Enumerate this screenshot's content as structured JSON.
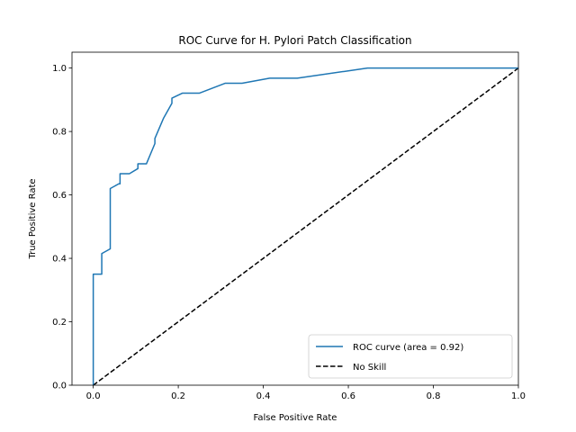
{
  "chart_data": {
    "type": "line",
    "title": "ROC Curve for H. Pylori Patch Classification",
    "xlabel": "False Positive Rate",
    "ylabel": "True Positive Rate",
    "xlim": [
      -0.05,
      1.0
    ],
    "ylim": [
      0.0,
      1.05
    ],
    "xticks": [
      0.0,
      0.2,
      0.4,
      0.6,
      0.8,
      1.0
    ],
    "xtick_labels": [
      "0.0",
      "0.2",
      "0.4",
      "0.6",
      "0.8",
      "1.0"
    ],
    "yticks": [
      0.0,
      0.2,
      0.4,
      0.6,
      0.8,
      1.0
    ],
    "ytick_labels": [
      "0.0",
      "0.2",
      "0.4",
      "0.6",
      "0.8",
      "1.0"
    ],
    "grid": false,
    "legend_position": "lower-right",
    "series": [
      {
        "name": "ROC curve (area = 0.92)",
        "color": "#1f77b4",
        "style": "solid",
        "x": [
          0.0,
          0.0,
          0.02,
          0.02,
          0.04,
          0.04,
          0.06,
          0.063,
          0.063,
          0.085,
          0.105,
          0.105,
          0.125,
          0.145,
          0.145,
          0.165,
          0.185,
          0.185,
          0.21,
          0.25,
          0.31,
          0.35,
          0.415,
          0.48,
          0.645,
          1.0
        ],
        "y": [
          0.0,
          0.35,
          0.35,
          0.415,
          0.43,
          0.62,
          0.635,
          0.635,
          0.667,
          0.667,
          0.683,
          0.698,
          0.698,
          0.762,
          0.778,
          0.841,
          0.889,
          0.905,
          0.921,
          0.921,
          0.952,
          0.952,
          0.968,
          0.968,
          1.0,
          1.0
        ]
      },
      {
        "name": "No Skill",
        "color": "#000000",
        "style": "dashed",
        "x": [
          0.0,
          1.0
        ],
        "y": [
          0.0,
          1.0
        ]
      }
    ]
  }
}
